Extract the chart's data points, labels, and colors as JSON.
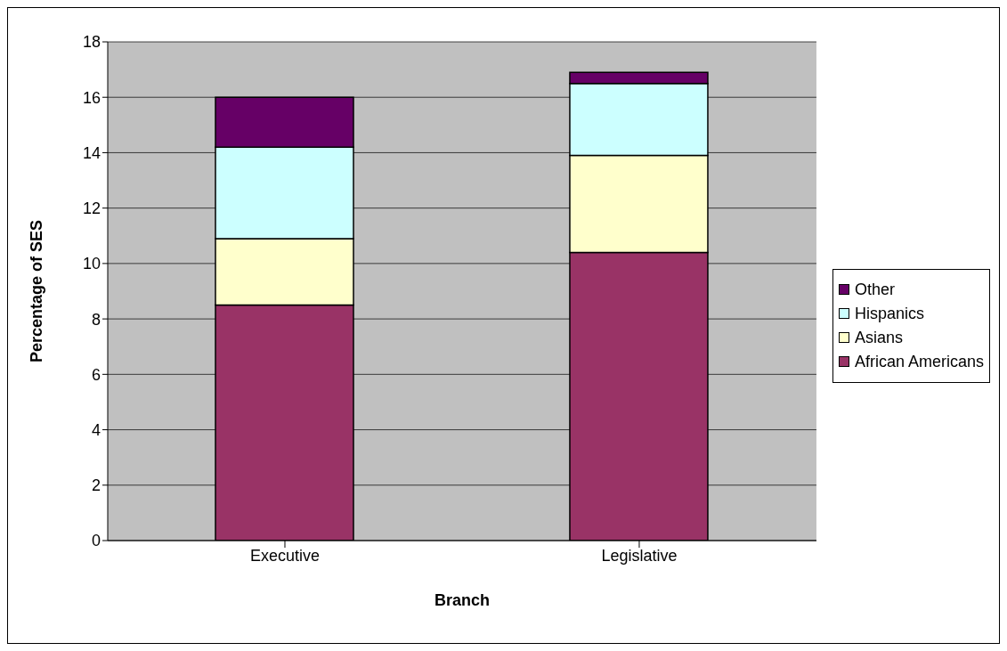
{
  "chart_data": {
    "type": "bar",
    "stacked": true,
    "xlabel": "Branch",
    "ylabel": "Percentage of SES",
    "categories": [
      "Executive",
      "Legislative"
    ],
    "series": [
      {
        "name": "African Americans",
        "color": "#993366",
        "values": [
          8.5,
          10.4
        ]
      },
      {
        "name": "Asians",
        "color": "#ffffcc",
        "values": [
          2.4,
          3.5
        ]
      },
      {
        "name": "Hispanics",
        "color": "#ccffff",
        "values": [
          3.3,
          2.6
        ]
      },
      {
        "name": "Other",
        "color": "#660066",
        "values": [
          1.8,
          0.4
        ]
      }
    ],
    "ylim": [
      0,
      18
    ],
    "yticks": [
      0,
      2,
      4,
      6,
      8,
      10,
      12,
      14,
      16,
      18
    ],
    "grid": "y",
    "legend": "right"
  }
}
